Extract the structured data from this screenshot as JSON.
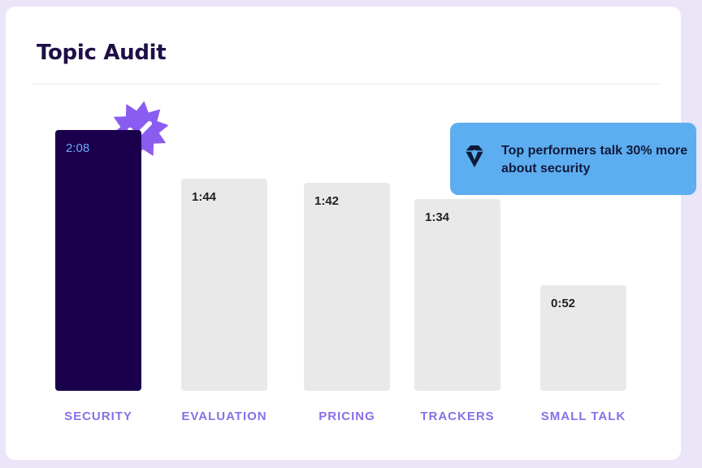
{
  "title": "Topic Audit",
  "callout": {
    "text": "Top performers talk 30% more about security",
    "icon": "diamond-gem-icon"
  },
  "badge": {
    "icon": "verified-checkmark-icon",
    "color": "#8a5cf0"
  },
  "colors": {
    "active_bar": "#1a004c",
    "inactive_bar": "#e9e9ea",
    "category_text": "#8a6fe8",
    "callout_bg": "#5daef0"
  },
  "chart_data": {
    "type": "bar",
    "title": "Topic Audit",
    "categories": [
      "SECURITY",
      "EVALUATION",
      "PRICING",
      "TRACKERS",
      "SMALL TALK"
    ],
    "values": [
      128,
      104,
      102,
      94,
      52
    ],
    "value_labels": [
      "2:08",
      "1:44",
      "1:42",
      "1:34",
      "0:52"
    ],
    "highlighted": "SECURITY",
    "xlabel": "",
    "ylabel": "",
    "grid": false
  }
}
